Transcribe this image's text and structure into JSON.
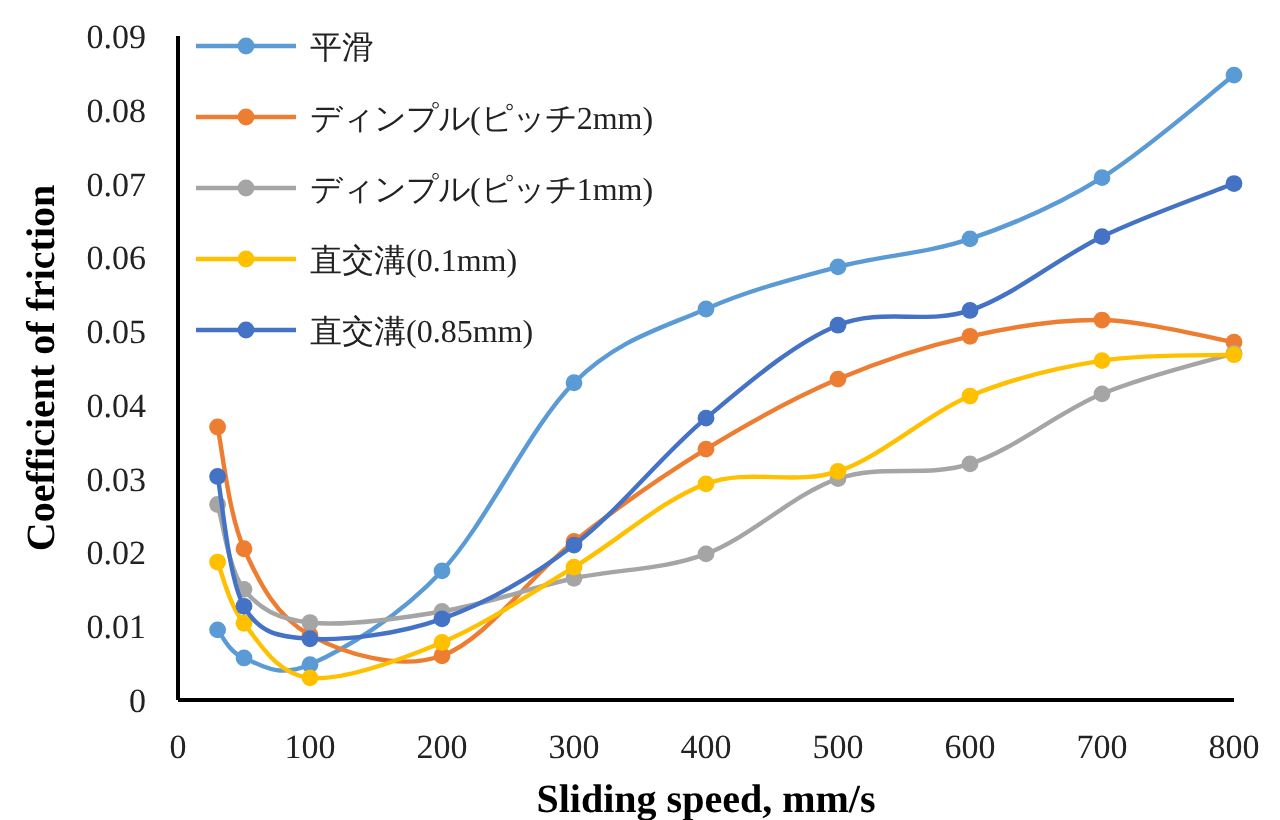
{
  "chart_data": {
    "type": "line",
    "xlabel": "Sliding speed, mm/s",
    "ylabel": "Coefficient of friction",
    "x": [
      30,
      50,
      100,
      200,
      300,
      400,
      500,
      600,
      700,
      800
    ],
    "xlim": [
      0,
      800
    ],
    "xticks": [
      0,
      100,
      200,
      300,
      400,
      500,
      600,
      700,
      800
    ],
    "ylim": [
      0,
      0.09
    ],
    "yticks": [
      0,
      0.01,
      0.02,
      0.03,
      0.04,
      0.05,
      0.06,
      0.07,
      0.08,
      0.09
    ],
    "grid": false,
    "legend": "top left",
    "marker": "circle",
    "series": [
      {
        "name": "平滑",
        "color": "#5b9bd5",
        "values": [
          0.0095,
          0.0057,
          0.0048,
          0.0175,
          0.043,
          0.053,
          0.0587,
          0.0625,
          0.0708,
          0.0847
        ]
      },
      {
        "name": "ディンプル(ピッチ2mm)",
        "color": "#ed7d31",
        "values": [
          0.037,
          0.0205,
          0.0088,
          0.006,
          0.0215,
          0.034,
          0.0435,
          0.0493,
          0.0515,
          0.0485
        ]
      },
      {
        "name": "ディンプル(ピッチ1mm)",
        "color": "#a5a5a5",
        "values": [
          0.0265,
          0.015,
          0.0105,
          0.012,
          0.0165,
          0.0198,
          0.03,
          0.032,
          0.0415,
          0.047
        ]
      },
      {
        "name": "直交溝(0.1mm)",
        "color": "#ffc000",
        "values": [
          0.0187,
          0.0104,
          0.003,
          0.0078,
          0.018,
          0.0293,
          0.031,
          0.0412,
          0.046,
          0.0468
        ]
      },
      {
        "name": "直交溝(0.85mm)",
        "color": "#4472c4",
        "values": [
          0.0303,
          0.0127,
          0.0083,
          0.011,
          0.021,
          0.0382,
          0.0508,
          0.0528,
          0.0628,
          0.07
        ]
      }
    ]
  }
}
